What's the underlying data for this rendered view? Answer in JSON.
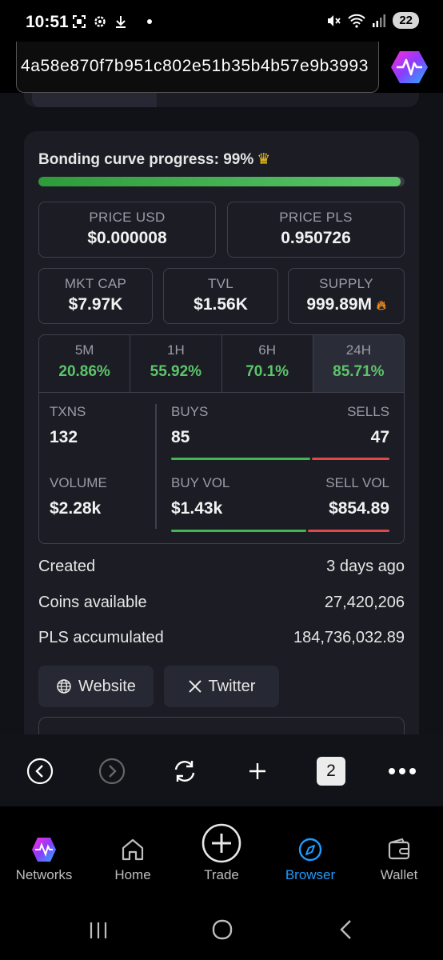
{
  "status_bar": {
    "time": "10:51",
    "battery": "22"
  },
  "address_bar": {
    "url": "4a58e870f7b951c802e51b35b4b57e9b3993"
  },
  "bonding": {
    "title": "Bonding curve progress: 99%",
    "progress": 0.99,
    "crown_icon": "crown-icon"
  },
  "price": {
    "usd_label": "PRICE USD",
    "usd_value": "$0.000008",
    "pls_label": "PRICE PLS",
    "pls_value": "0.950726"
  },
  "metrics": {
    "mktcap_label": "MKT CAP",
    "mktcap_value": "$7.97K",
    "tvl_label": "TVL",
    "tvl_value": "$1.56K",
    "supply_label": "SUPPLY",
    "supply_value": "999.89M"
  },
  "periods": [
    {
      "label": "5M",
      "value": "20.86%"
    },
    {
      "label": "1H",
      "value": "55.92%"
    },
    {
      "label": "6H",
      "value": "70.1%"
    },
    {
      "label": "24H",
      "value": "85.71%"
    }
  ],
  "txns": {
    "txns_label": "TXNS",
    "txns_value": "132",
    "buys_label": "BUYS",
    "buys_value": "85",
    "sells_label": "SELLS",
    "sells_value": "47",
    "volume_label": "VOLUME",
    "volume_value": "$2.28k",
    "buyvol_label": "BUY VOL",
    "buyvol_value": "$1.43k",
    "sellvol_label": "SELL VOL",
    "sellvol_value": "$854.89"
  },
  "info": {
    "created_label": "Created",
    "created_value": "3 days ago",
    "coins_label": "Coins available",
    "coins_value": "27,420,206",
    "pls_label": "PLS accumulated",
    "pls_value": "184,736,032.89"
  },
  "links": {
    "website": "Website",
    "twitter": "Twitter"
  },
  "browser_toolbar": {
    "tab_count": "2"
  },
  "app_nav": [
    {
      "label": "Networks",
      "icon": "networks-logo-icon"
    },
    {
      "label": "Home",
      "icon": "home-icon"
    },
    {
      "label": "Trade",
      "icon": "plus-circle-icon"
    },
    {
      "label": "Browser",
      "icon": "compass-icon",
      "active": true
    },
    {
      "label": "Wallet",
      "icon": "wallet-icon"
    }
  ],
  "colors": {
    "positive": "#5cc56a",
    "negative": "#e0484a",
    "accent": "#1e9bff",
    "crown": "#f5c518",
    "flame": "#f08a1c"
  }
}
